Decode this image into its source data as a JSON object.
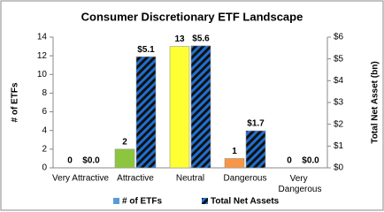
{
  "chart_data": {
    "type": "bar",
    "title": "Consumer Discretionary ETF Landscape",
    "categories": [
      "Very Attractive",
      "Attractive",
      "Neutral",
      "Dangerous",
      "Very Dangerous"
    ],
    "series": [
      {
        "name": "# of ETFs",
        "color": "#5b9bd5",
        "colors": [
          "#ffffff",
          "#8cc63e",
          "#ffff33",
          "#f79646",
          "#ffffff"
        ],
        "values": [
          0,
          2,
          13,
          1,
          0
        ]
      },
      {
        "name": "Total Net Assets",
        "color": "#1f6fd1",
        "axis": "y2",
        "values": [
          0.0,
          5.1,
          5.6,
          1.7,
          0.0
        ],
        "value_labels": [
          "$0.0",
          "$5.1",
          "$5.6",
          "$1.7",
          "$0.0"
        ]
      }
    ],
    "ylabel": "# of ETFs",
    "y2label": "Total Net Asset (bn)",
    "ylim": [
      0,
      14
    ],
    "yticks": [
      0,
      2,
      4,
      6,
      8,
      10,
      12,
      14
    ],
    "y2lim": [
      0,
      6
    ],
    "y2ticks": [
      {
        "value": 0,
        "label": "$0"
      },
      {
        "value": 1,
        "label": "$1"
      },
      {
        "value": 2,
        "label": "$2"
      },
      {
        "value": 3,
        "label": "$3"
      },
      {
        "value": 4,
        "label": "$4"
      },
      {
        "value": 5,
        "label": "$5"
      },
      {
        "value": 6,
        "label": "$6"
      }
    ],
    "grid": false,
    "legend": "bottom"
  }
}
